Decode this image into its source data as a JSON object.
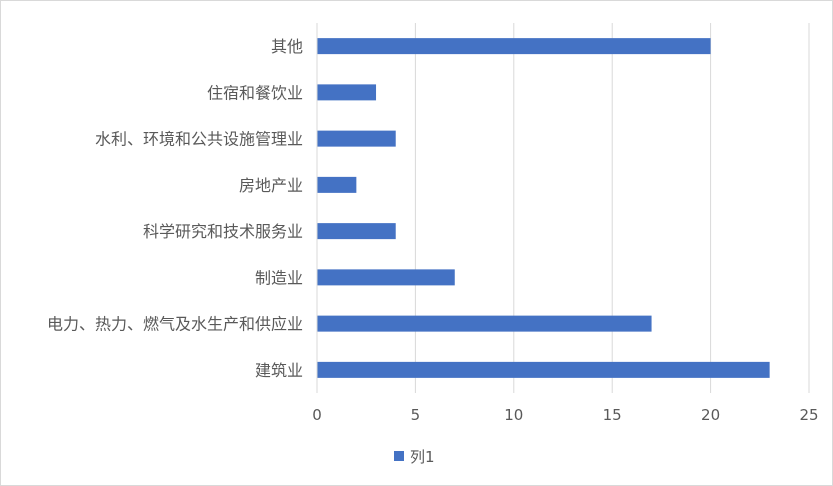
{
  "chart_data": {
    "type": "bar",
    "orientation": "horizontal",
    "categories": [
      "其他",
      "住宿和餐饮业",
      "水利、环境和公共设施管理业",
      "房地产业",
      "科学研究和技术服务业",
      "制造业",
      "电力、热力、燃气及水生产和供应业",
      "建筑业"
    ],
    "series": [
      {
        "name": "列1",
        "color": "#4472c4",
        "values": [
          20,
          3,
          4,
          2,
          4,
          7,
          17,
          23
        ]
      }
    ],
    "xlim": [
      0,
      25
    ],
    "xticks": [
      "0",
      "5",
      "10",
      "15",
      "20",
      "25"
    ],
    "grid": "vertical",
    "legend": "bottom"
  }
}
